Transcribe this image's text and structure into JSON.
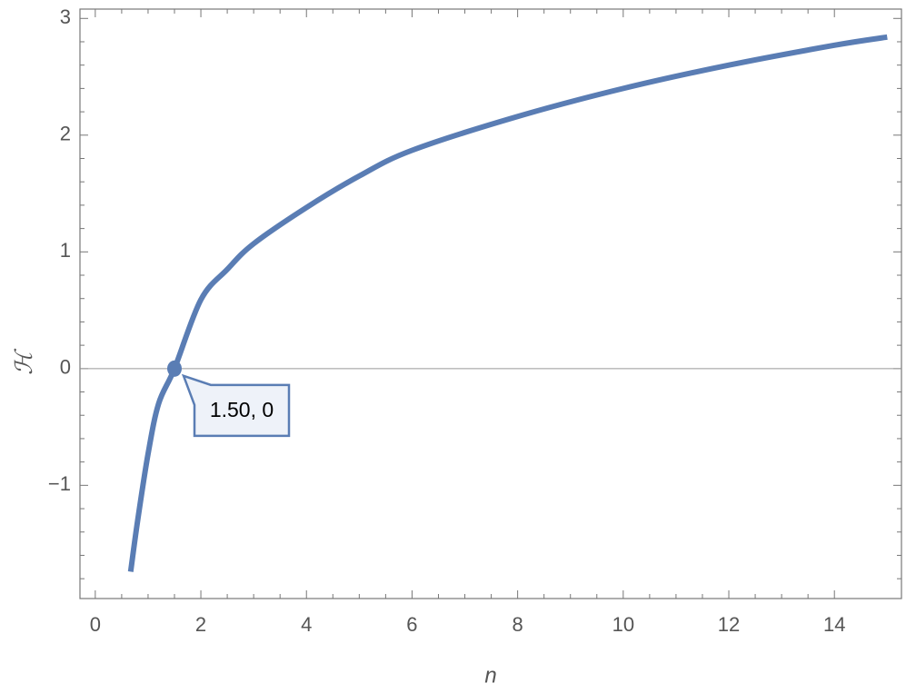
{
  "chart_data": {
    "type": "line",
    "x_label": "n",
    "y_label": "ℋ",
    "x": [
      0.67,
      0.8,
      1,
      1.2,
      1.5,
      2,
      2.5,
      3,
      4,
      5,
      6,
      8,
      10,
      12,
      14,
      15
    ],
    "values": [
      -1.74,
      -1.31,
      -0.73,
      -0.3,
      0,
      0.59,
      0.85,
      1.07,
      1.38,
      1.65,
      1.87,
      2.16,
      2.4,
      2.6,
      2.77,
      2.84
    ],
    "color": "#5a7db4",
    "xlim": [
      -0.29,
      15.27
    ],
    "ylim": [
      -1.97,
      3.08
    ],
    "xticks": [
      0,
      2,
      4,
      6,
      8,
      10,
      12,
      14
    ],
    "yticks": [
      {
        "value": -1,
        "label": "−1"
      },
      0,
      1,
      2,
      3
    ],
    "annotations": [
      {
        "text": "1.50, 0",
        "x": 1.5,
        "y": 0
      }
    ]
  }
}
